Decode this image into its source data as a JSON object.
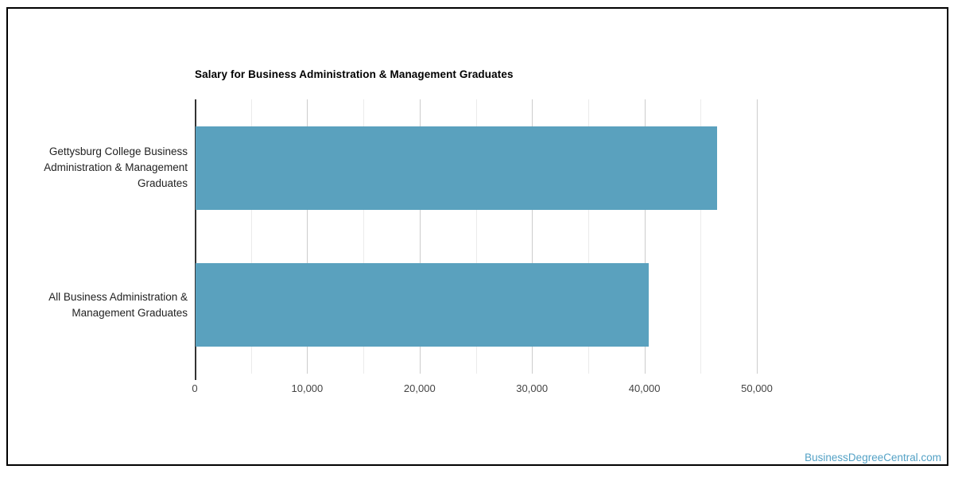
{
  "page": {
    "watermark": "BusinessDegreeCentral.com"
  },
  "colors": {
    "bar": "#5AA1BE",
    "watermark": "#54A2C6",
    "grid_major": "#cccccc",
    "grid_minor": "#ebebeb",
    "axis_line": "#333333",
    "title_text": "#000000",
    "category_text": "#222222",
    "tick_text": "#444444",
    "frame_border": "#000000"
  },
  "chart_data": {
    "type": "bar",
    "orientation": "horizontal",
    "title": "Salary for Business Administration & Management Graduates",
    "categories": [
      "Gettysburg College Business Administration & Management Graduates",
      "All Business Administration & Management Graduates"
    ],
    "values": [
      46400,
      40300
    ],
    "xlabel": "",
    "ylabel": "",
    "xlim": [
      0,
      50000
    ],
    "x_major_ticks": [
      0,
      10000,
      20000,
      30000,
      40000,
      50000
    ],
    "x_tick_labels": [
      "0",
      "10,000",
      "20,000",
      "30,000",
      "40,000",
      "50,000"
    ],
    "x_minor_step": 5000,
    "grid": true,
    "legend": "none",
    "bar_color": "#5AA1BE"
  }
}
